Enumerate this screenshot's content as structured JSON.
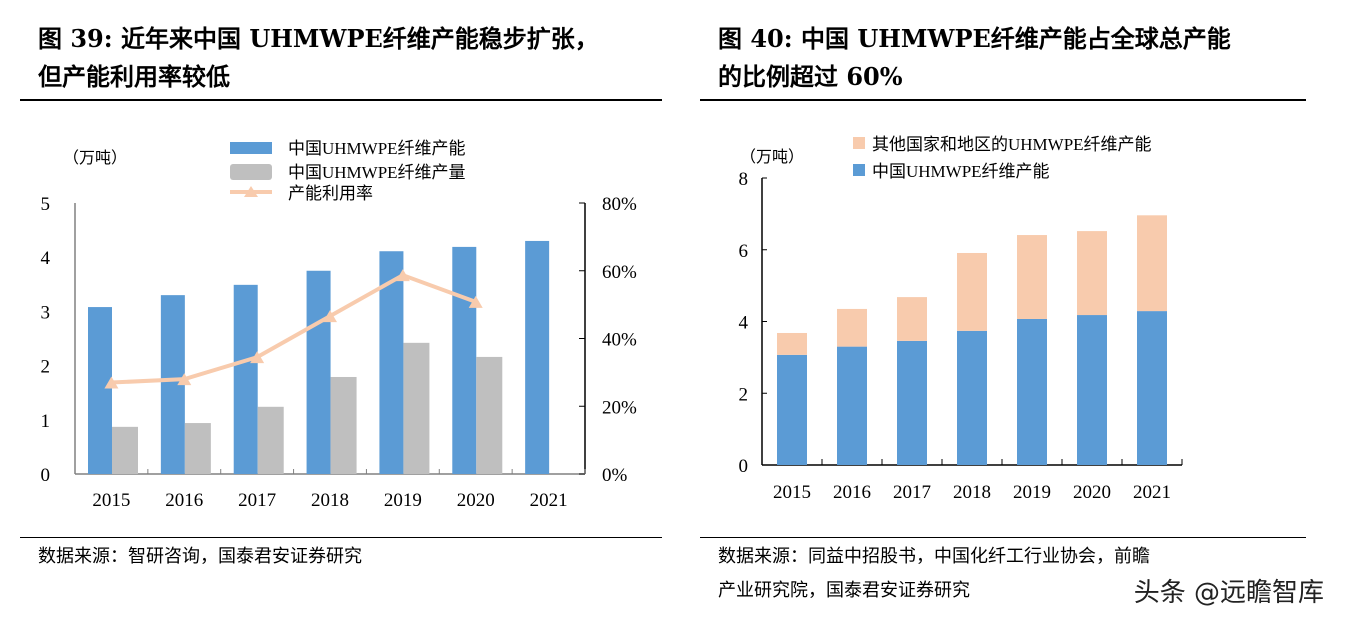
{
  "left": {
    "title": "图 39: 近年来中国 UHMWPE纤维产能稳步扩张，但产能利用率较低",
    "title_l1": "图 39: 近年来中国 UHMWPE纤维产能稳步扩张，",
    "title_l2": "但产能利用率较低",
    "source": "数据来源：智研咨询，国泰君安证券研究"
  },
  "right": {
    "title_l1": "图 40: 中国 UHMWPE纤维产能占全球总产能",
    "title_l2": "的比例超过 60%",
    "source_l1": "数据来源：同益中招股书，中国化纤工行业协会，前瞻",
    "source_l2": "产业研究院，国泰君安证券研究"
  },
  "watermark": "头条 @远瞻智库",
  "chart_data": [
    {
      "type": "bar+line",
      "categories": [
        "2015",
        "2016",
        "2017",
        "2018",
        "2019",
        "2020",
        "2021"
      ],
      "ylabel": "（万吨）",
      "ylim": [
        0,
        5
      ],
      "yticks": [
        "0",
        "1",
        "2",
        "3",
        "4",
        "5"
      ],
      "y2lim": [
        0,
        0.8
      ],
      "y2ticks": [
        "0%",
        "20%",
        "40%",
        "60%",
        "80%"
      ],
      "legend": "top",
      "grid": false,
      "series": [
        {
          "name": "中国UHMWPE纤维产能",
          "type": "bar",
          "color": "#5b9bd5",
          "values": [
            3.08,
            3.3,
            3.49,
            3.75,
            4.11,
            4.19,
            4.3
          ]
        },
        {
          "name": "中国UHMWPE纤维产量",
          "type": "bar",
          "color": "#bfbfbf",
          "values": [
            0.87,
            0.94,
            1.24,
            1.79,
            2.42,
            2.16,
            null
          ]
        },
        {
          "name": "产能利用率",
          "type": "line",
          "axis": "right",
          "color": "#f8cbad",
          "values": [
            0.27,
            0.28,
            0.345,
            0.466,
            0.587,
            0.508,
            null
          ]
        }
      ]
    },
    {
      "type": "stacked-bar",
      "categories": [
        "2015",
        "2016",
        "2017",
        "2018",
        "2019",
        "2020",
        "2021"
      ],
      "ylabel": "（万吨）",
      "ylim": [
        0,
        8
      ],
      "yticks": [
        "0",
        "2",
        "4",
        "6",
        "8"
      ],
      "legend": "top",
      "grid": false,
      "series": [
        {
          "name": "中国UHMWPE纤维产能",
          "color": "#5b9bd5",
          "values": [
            3.07,
            3.3,
            3.46,
            3.74,
            4.07,
            4.18,
            4.29
          ]
        },
        {
          "name": "其他国家和地区的UHMWPE纤维产能",
          "color": "#f8cbad",
          "values": [
            0.61,
            1.05,
            1.22,
            2.17,
            2.34,
            2.34,
            2.67
          ]
        }
      ]
    }
  ]
}
